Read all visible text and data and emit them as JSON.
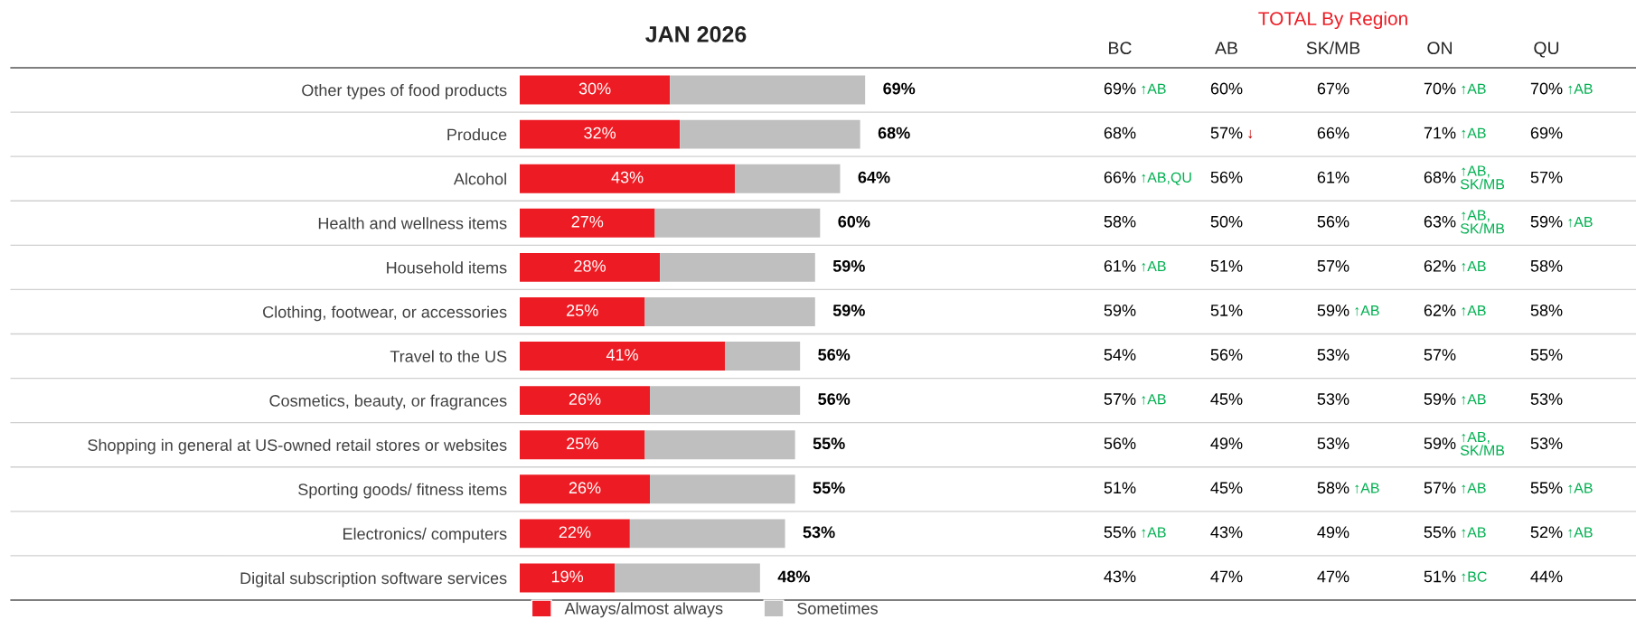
{
  "chart_data": [
    {
      "type": "bar",
      "orientation": "horizontal",
      "stacked": true,
      "title": "JAN 2026",
      "legend": "bottom",
      "categories": [
        "Other types of food products",
        "Produce",
        "Alcohol",
        "Health and wellness items",
        "Household items",
        "Clothing, footwear, or accessories",
        "Travel to the US",
        "Cosmetics, beauty, or fragrances",
        "Shopping in general at US-owned retail stores or websites",
        "Sporting goods/ fitness items",
        "Electronics/ computers",
        "Digital subscription software services"
      ],
      "series": [
        {
          "name": "Always/almost always",
          "color": "#ed1c24",
          "values": [
            30,
            32,
            43,
            27,
            28,
            25,
            41,
            26,
            25,
            26,
            22,
            19
          ],
          "value_labels": [
            "30%",
            "32%",
            "43%",
            "27%",
            "28%",
            "25%",
            "41%",
            "26%",
            "25%",
            "26%",
            "22%",
            "19%"
          ]
        },
        {
          "name": "Sometimes",
          "color": "#bfbfbf",
          "values": [
            39,
            36,
            21,
            33,
            31,
            34,
            15,
            30,
            30,
            29,
            31,
            29
          ]
        }
      ],
      "totals": [
        "69%",
        "68%",
        "64%",
        "60%",
        "59%",
        "59%",
        "56%",
        "56%",
        "55%",
        "55%",
        "53%",
        "48%"
      ]
    },
    {
      "type": "heatmap",
      "title": "TOTAL By Region",
      "tick_labels": "x",
      "categories": [
        "BC",
        "AB",
        "SK/MB",
        "ON",
        "QU"
      ],
      "y_categories": [
        "Other types of food products",
        "Produce",
        "Alcohol",
        "Health and wellness items",
        "Household items",
        "Clothing, footwear, or accessories",
        "Travel to the US",
        "Cosmetics, beauty, or fragrances",
        "Shopping in general at US-owned retail stores or websites",
        "Sporting goods/ fitness items",
        "Electronics/ computers",
        "Digital subscription software services"
      ],
      "cells": [
        [
          69,
          60,
          67,
          70,
          70
        ],
        [
          68,
          57,
          66,
          71,
          69
        ],
        [
          66,
          56,
          61,
          68,
          57
        ],
        [
          58,
          50,
          56,
          63,
          59
        ],
        [
          61,
          51,
          57,
          62,
          58
        ],
        [
          59,
          51,
          59,
          62,
          58
        ],
        [
          54,
          56,
          53,
          57,
          55
        ],
        [
          57,
          45,
          53,
          59,
          53
        ],
        [
          56,
          49,
          53,
          59,
          53
        ],
        [
          51,
          45,
          58,
          57,
          55
        ],
        [
          55,
          43,
          49,
          55,
          52
        ],
        [
          43,
          47,
          47,
          51,
          44
        ]
      ],
      "cell_labels": [
        [
          "69% ↑AB",
          "60%",
          "67%",
          "70% ↑AB",
          "70% ↑AB"
        ],
        [
          "68%",
          "57% ↓",
          "66%",
          "71% ↑AB",
          "69%"
        ],
        [
          "66% ↑AB,QU",
          "56%",
          "61%",
          "68% ↑AB,\nSK/MB",
          "57%"
        ],
        [
          "58%",
          "50%",
          "56%",
          "63% ↑AB,\nSK/MB",
          "59% ↑AB"
        ],
        [
          "61% ↑AB",
          "51%",
          "57%",
          "62% ↑AB",
          "58%"
        ],
        [
          "59%",
          "51%",
          "59% ↑AB",
          "62% ↑AB",
          "58%"
        ],
        [
          "54%",
          "56%",
          "53%",
          "57%",
          "55%"
        ],
        [
          "57% ↑AB",
          "45%",
          "53%",
          "59% ↑AB",
          "53%"
        ],
        [
          "56%",
          "49%",
          "53%",
          "59% ↑AB,\nSK/MB",
          "53%"
        ],
        [
          "51%",
          "45%",
          "58% ↑AB",
          "57% ↑AB",
          "55% ↑AB"
        ],
        [
          "55% ↑AB",
          "43%",
          "49%",
          "55% ↑AB",
          "52% ↑AB"
        ],
        [
          "43%",
          "47%",
          "47%",
          "51% ↑BC",
          "44%"
        ]
      ]
    }
  ]
}
